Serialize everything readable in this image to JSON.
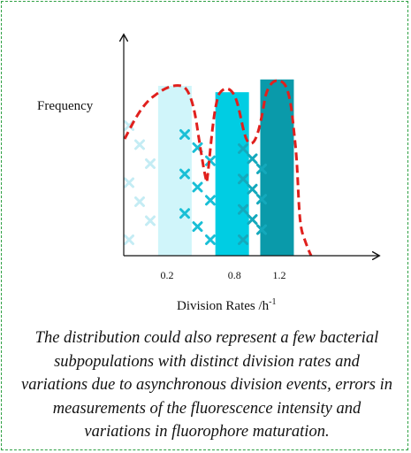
{
  "chart_data": {
    "type": "bar",
    "ylabel": "Frequency",
    "xlabel_text": "Division Rates /h",
    "xlabel_sup": "-1",
    "x_ticks": [
      "0.2",
      "0.8",
      "1.2"
    ],
    "bars": [
      {
        "center": 0.27,
        "height": 0.8,
        "color": "#d0f5fa"
      },
      {
        "center": 0.78,
        "height": 0.77,
        "color": "#00cde3"
      },
      {
        "center": 1.18,
        "height": 0.83,
        "color": "#0a9aaa"
      }
    ],
    "scatter_groups": [
      {
        "color": "#c4ecf4",
        "count": 7
      },
      {
        "color": "#19bfd6",
        "count": 9
      },
      {
        "color": "#14a9bc",
        "count": 10
      }
    ],
    "curve": {
      "style": "dashed",
      "color": "#e0201d"
    }
  },
  "caption": "The distribution could also represent a few bacterial subpopulations with distinct division rates and variations due to asynchronous division events, errors in measurements of the fluorescence intensity and variations in fluorophore maturation."
}
